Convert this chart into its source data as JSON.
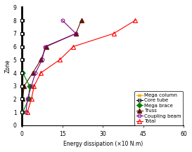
{
  "xlabel": "Energy dissipation (×10 N.m)",
  "ylabel": "Zone",
  "ylim": [
    0,
    9
  ],
  "xlim": [
    0,
    60
  ],
  "xticks": [
    0,
    15,
    30,
    45,
    60
  ],
  "yticks": [
    0,
    1,
    2,
    3,
    4,
    5,
    6,
    7,
    8,
    9
  ],
  "mega_column": {
    "zones": [
      1,
      2,
      3,
      4,
      5,
      6,
      7,
      8
    ],
    "values": [
      0.1,
      0.1,
      0.1,
      0.1,
      0.1,
      0.1,
      0.1,
      0.1
    ],
    "color": "#FFA500",
    "marker": "x",
    "label": "Mega column"
  },
  "core_tube": {
    "zones": [
      1,
      2,
      3,
      4,
      5,
      6,
      7,
      8
    ],
    "values": [
      0.2,
      0.2,
      0.2,
      0.2,
      0.2,
      0.2,
      0.2,
      0.2
    ],
    "color": "#000000",
    "marker": "s",
    "label": "Core tube"
  },
  "mega_brace": {
    "zones": [
      1,
      2,
      3,
      4
    ],
    "values": [
      0.3,
      2.5,
      2.8,
      0.3
    ],
    "color": "#008000",
    "marker": "D",
    "label": "Mega brace"
  },
  "truss": {
    "zones": [
      2,
      3,
      4,
      5,
      6,
      7,
      8
    ],
    "values": [
      0.3,
      0.8,
      4.0,
      7.0,
      9.0,
      20.0,
      22.0
    ],
    "color": "#5C1A00",
    "marker": "^",
    "label": "Truss"
  },
  "coupling_beam": {
    "zones": [
      1,
      2,
      3,
      4,
      5,
      6,
      7,
      8
    ],
    "values": [
      1.5,
      2.0,
      3.5,
      5.0,
      7.5,
      8.5,
      20.0,
      15.0
    ],
    "color": "#800080",
    "marker": "o",
    "label": "Coupling beam"
  },
  "total": {
    "zones": [
      1,
      2,
      3,
      4,
      5,
      6,
      7,
      8
    ],
    "values": [
      2.0,
      3.5,
      4.5,
      7.0,
      14.0,
      19.0,
      34.0,
      42.0
    ],
    "color": "#FF0000",
    "marker": "^",
    "label": "Total"
  },
  "background_color": "#ffffff",
  "legend_fontsize": 5.0,
  "axis_fontsize": 5.5,
  "tick_fontsize": 5.5
}
